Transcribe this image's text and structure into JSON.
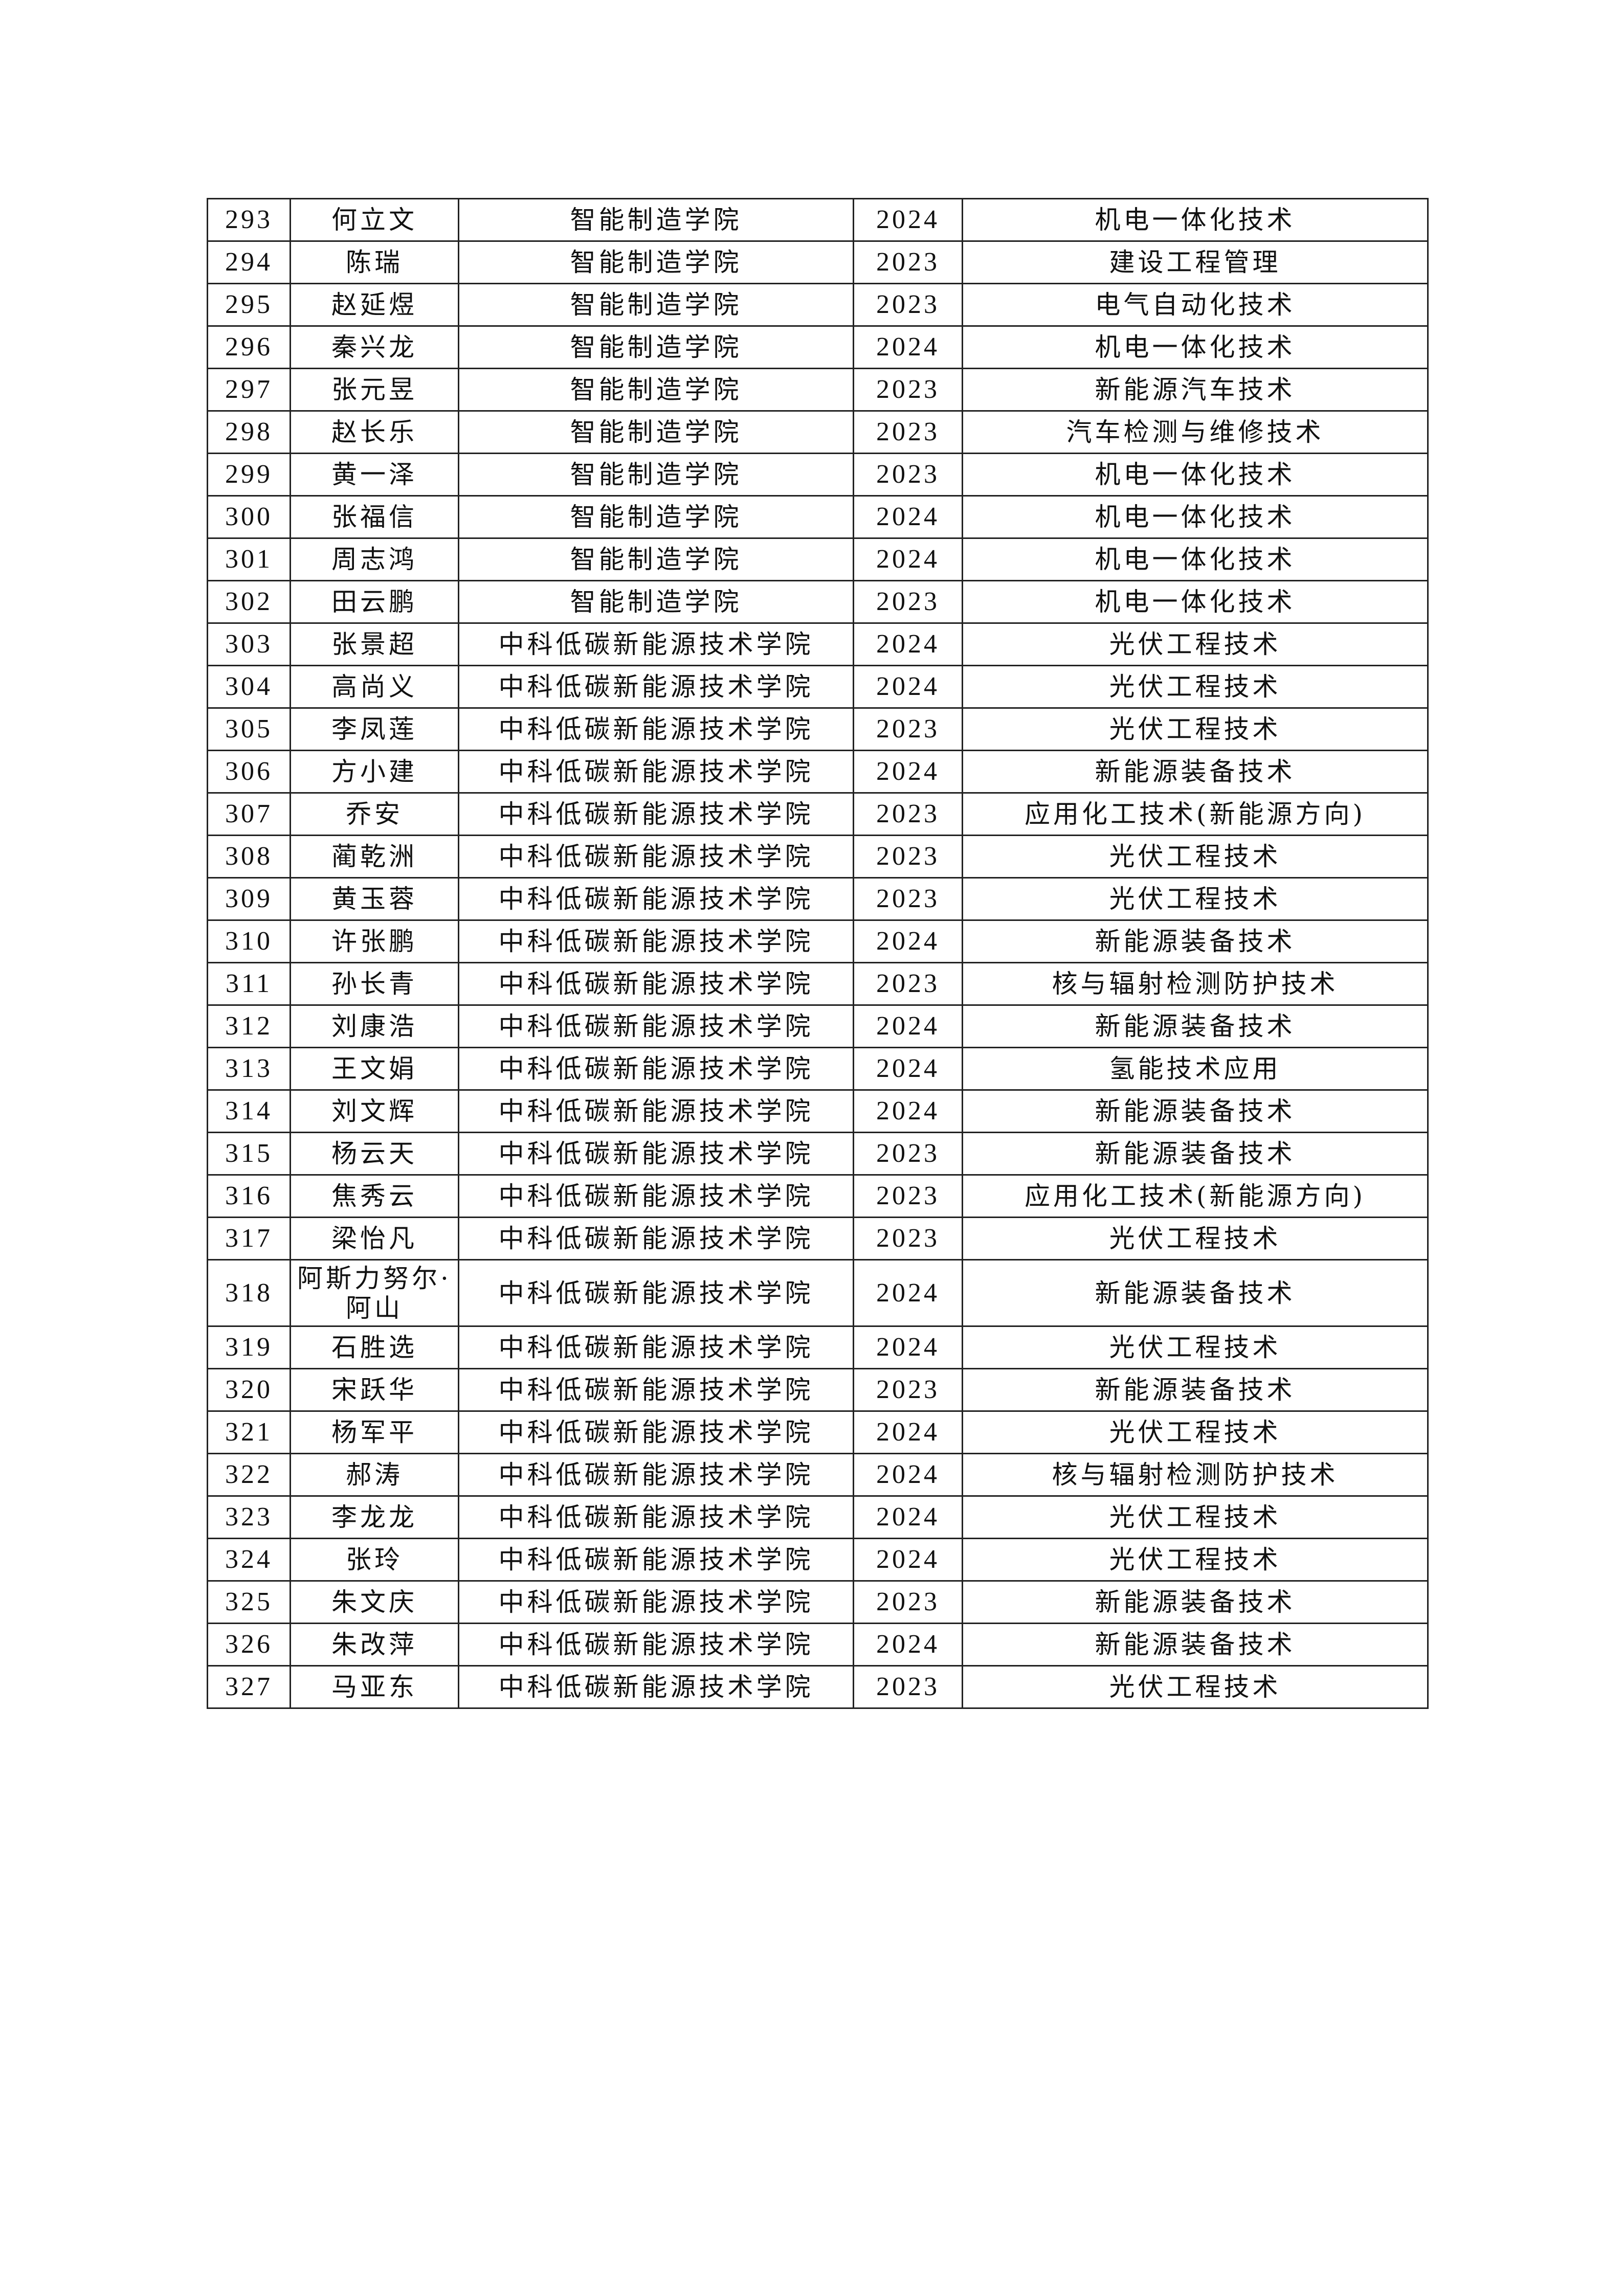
{
  "rows": [
    {
      "no": "293",
      "name": "何立文",
      "college": "智能制造学院",
      "year": "2024",
      "major": "机电一体化技术"
    },
    {
      "no": "294",
      "name": "陈瑞",
      "college": "智能制造学院",
      "year": "2023",
      "major": "建设工程管理"
    },
    {
      "no": "295",
      "name": "赵延煜",
      "college": "智能制造学院",
      "year": "2023",
      "major": "电气自动化技术"
    },
    {
      "no": "296",
      "name": "秦兴龙",
      "college": "智能制造学院",
      "year": "2024",
      "major": "机电一体化技术"
    },
    {
      "no": "297",
      "name": "张元昱",
      "college": "智能制造学院",
      "year": "2023",
      "major": "新能源汽车技术"
    },
    {
      "no": "298",
      "name": "赵长乐",
      "college": "智能制造学院",
      "year": "2023",
      "major": "汽车检测与维修技术"
    },
    {
      "no": "299",
      "name": "黄一泽",
      "college": "智能制造学院",
      "year": "2023",
      "major": "机电一体化技术"
    },
    {
      "no": "300",
      "name": "张福信",
      "college": "智能制造学院",
      "year": "2024",
      "major": "机电一体化技术"
    },
    {
      "no": "301",
      "name": "周志鸿",
      "college": "智能制造学院",
      "year": "2024",
      "major": "机电一体化技术"
    },
    {
      "no": "302",
      "name": "田云鹏",
      "college": "智能制造学院",
      "year": "2023",
      "major": "机电一体化技术"
    },
    {
      "no": "303",
      "name": "张景超",
      "college": "中科低碳新能源技术学院",
      "year": "2024",
      "major": "光伏工程技术"
    },
    {
      "no": "304",
      "name": "高尚义",
      "college": "中科低碳新能源技术学院",
      "year": "2024",
      "major": "光伏工程技术"
    },
    {
      "no": "305",
      "name": "李凤莲",
      "college": "中科低碳新能源技术学院",
      "year": "2023",
      "major": "光伏工程技术"
    },
    {
      "no": "306",
      "name": "方小建",
      "college": "中科低碳新能源技术学院",
      "year": "2024",
      "major": "新能源装备技术"
    },
    {
      "no": "307",
      "name": "乔安",
      "college": "中科低碳新能源技术学院",
      "year": "2023",
      "major": "应用化工技术(新能源方向)"
    },
    {
      "no": "308",
      "name": "蔺乾洲",
      "college": "中科低碳新能源技术学院",
      "year": "2023",
      "major": "光伏工程技术"
    },
    {
      "no": "309",
      "name": "黄玉蓉",
      "college": "中科低碳新能源技术学院",
      "year": "2023",
      "major": "光伏工程技术"
    },
    {
      "no": "310",
      "name": "许张鹏",
      "college": "中科低碳新能源技术学院",
      "year": "2024",
      "major": "新能源装备技术"
    },
    {
      "no": "311",
      "name": "孙长青",
      "college": "中科低碳新能源技术学院",
      "year": "2023",
      "major": "核与辐射检测防护技术"
    },
    {
      "no": "312",
      "name": "刘康浩",
      "college": "中科低碳新能源技术学院",
      "year": "2024",
      "major": "新能源装备技术"
    },
    {
      "no": "313",
      "name": "王文娟",
      "college": "中科低碳新能源技术学院",
      "year": "2024",
      "major": "氢能技术应用"
    },
    {
      "no": "314",
      "name": "刘文辉",
      "college": "中科低碳新能源技术学院",
      "year": "2024",
      "major": "新能源装备技术"
    },
    {
      "no": "315",
      "name": "杨云天",
      "college": "中科低碳新能源技术学院",
      "year": "2023",
      "major": "新能源装备技术"
    },
    {
      "no": "316",
      "name": "焦秀云",
      "college": "中科低碳新能源技术学院",
      "year": "2023",
      "major": "应用化工技术(新能源方向)"
    },
    {
      "no": "317",
      "name": "梁怡凡",
      "college": "中科低碳新能源技术学院",
      "year": "2023",
      "major": "光伏工程技术"
    },
    {
      "no": "318",
      "name": "阿斯力努尔·阿山",
      "college": "中科低碳新能源技术学院",
      "year": "2024",
      "major": "新能源装备技术"
    },
    {
      "no": "319",
      "name": "石胜选",
      "college": "中科低碳新能源技术学院",
      "year": "2024",
      "major": "光伏工程技术"
    },
    {
      "no": "320",
      "name": "宋跃华",
      "college": "中科低碳新能源技术学院",
      "year": "2023",
      "major": "新能源装备技术"
    },
    {
      "no": "321",
      "name": "杨军平",
      "college": "中科低碳新能源技术学院",
      "year": "2024",
      "major": "光伏工程技术"
    },
    {
      "no": "322",
      "name": "郝涛",
      "college": "中科低碳新能源技术学院",
      "year": "2024",
      "major": "核与辐射检测防护技术"
    },
    {
      "no": "323",
      "name": "李龙龙",
      "college": "中科低碳新能源技术学院",
      "year": "2024",
      "major": "光伏工程技术"
    },
    {
      "no": "324",
      "name": "张玲",
      "college": "中科低碳新能源技术学院",
      "year": "2024",
      "major": "光伏工程技术"
    },
    {
      "no": "325",
      "name": "朱文庆",
      "college": "中科低碳新能源技术学院",
      "year": "2023",
      "major": "新能源装备技术"
    },
    {
      "no": "326",
      "name": "朱改萍",
      "college": "中科低碳新能源技术学院",
      "year": "2024",
      "major": "新能源装备技术"
    },
    {
      "no": "327",
      "name": "马亚东",
      "college": "中科低碳新能源技术学院",
      "year": "2023",
      "major": "光伏工程技术"
    }
  ]
}
